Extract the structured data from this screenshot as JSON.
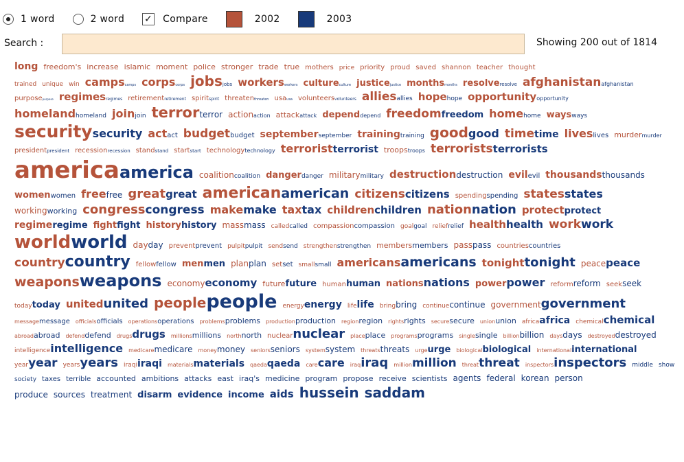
{
  "controls": {
    "radio1_label": "1 word",
    "radio2_label": "2 word",
    "compare_label": "Compare",
    "compare_check": "✓",
    "year1_label": "2002",
    "year2_label": "2003",
    "year1_color": "#b5533a",
    "year2_color": "#183a7a"
  },
  "search": {
    "label": "Search :",
    "value": "",
    "placeholder": ""
  },
  "status": {
    "showing": "Showing 200 out of 1814"
  },
  "cloud": {
    "lines": [
      [
        [
          "long",
          "",
          14,
          0
        ],
        [
          "freedom's",
          "",
          11,
          0
        ],
        [
          "increase",
          "",
          11,
          0
        ],
        [
          "islamic",
          "",
          11,
          0
        ],
        [
          "moment",
          "",
          11,
          0
        ],
        [
          "police",
          "",
          11,
          0
        ],
        [
          "stronger",
          "",
          11,
          0
        ],
        [
          "trade",
          "",
          11,
          0
        ],
        [
          "true",
          "",
          11,
          0
        ],
        [
          "mothers",
          "",
          10,
          0
        ],
        [
          "price",
          "",
          9,
          0
        ],
        [
          "priority",
          "",
          10,
          0
        ],
        [
          "proud",
          "",
          10,
          0
        ],
        [
          "saved",
          "",
          10,
          0
        ],
        [
          "shannon",
          "",
          10,
          0
        ],
        [
          "teacher",
          "",
          10,
          0
        ],
        [
          "thought",
          "",
          10,
          0
        ]
      ],
      [
        [
          "trained",
          "",
          9,
          0
        ],
        [
          "unique",
          "",
          9,
          0
        ],
        [
          "win",
          "",
          9,
          0
        ],
        [
          "camps",
          "camps",
          16,
          5
        ],
        [
          "corps",
          "corps",
          16,
          5
        ],
        [
          "jobs",
          "jobs",
          20,
          7
        ],
        [
          "workers",
          "workers",
          15,
          5
        ],
        [
          "culture",
          "culture",
          13,
          5
        ],
        [
          "justice",
          "justice",
          13,
          5
        ],
        [
          "months",
          "months",
          13,
          5
        ],
        [
          "resolve",
          "resolve",
          13,
          7
        ],
        [
          "afghanistan",
          "afghanistan",
          17,
          8
        ]
      ],
      [
        [
          "purpose",
          "purpose",
          10,
          4
        ],
        [
          "regimes",
          "regimes",
          15,
          6
        ],
        [
          "retirement",
          "retirement",
          10,
          6
        ],
        [
          "spirit",
          "spirit",
          10,
          6
        ],
        [
          "threaten",
          "threaten",
          10,
          5
        ],
        [
          "usa",
          "usa",
          10,
          5
        ],
        [
          "volunteers",
          "volunteers",
          10,
          6
        ],
        [
          "allies",
          "allies",
          17,
          9
        ],
        [
          "hope",
          "hope",
          15,
          9
        ],
        [
          "opportunity",
          "opportunity",
          15,
          8
        ]
      ],
      [
        [
          "homeland",
          "homeland",
          16,
          9
        ],
        [
          "join",
          "join",
          16,
          9
        ],
        [
          "terror",
          "terror",
          21,
          12
        ],
        [
          "action",
          "action",
          12,
          8
        ],
        [
          "attack",
          "attack",
          11,
          8
        ],
        [
          "depend",
          "depend",
          13,
          8
        ],
        [
          "freedom",
          "freedom",
          17,
          13
        ],
        [
          "home",
          "home",
          16,
          9
        ],
        [
          "ways",
          "ways",
          13,
          9
        ]
      ],
      [
        [
          "security",
          "security",
          25,
          16
        ],
        [
          "act",
          "act",
          16,
          10
        ],
        [
          "budget",
          "budget",
          17,
          10
        ],
        [
          "september",
          "september",
          14,
          9
        ],
        [
          "training",
          "training",
          14,
          9
        ],
        [
          "good",
          "good",
          20,
          16
        ],
        [
          "time",
          "time",
          17,
          14
        ],
        [
          "lives",
          "lives",
          16,
          10
        ],
        [
          "murder",
          "murder",
          11,
          8
        ]
      ],
      [
        [
          "president",
          "president",
          10,
          7
        ],
        [
          "recession",
          "recession",
          10,
          7
        ],
        [
          "stand",
          "stand",
          10,
          7
        ],
        [
          "start",
          "start",
          10,
          7
        ],
        [
          "technology",
          "technology",
          10,
          8
        ],
        [
          "terrorist",
          "terrorist",
          16,
          14
        ],
        [
          "troops",
          "troops",
          11,
          8
        ],
        [
          "terrorists",
          "terrorists",
          17,
          15
        ]
      ],
      [
        [
          "america",
          "america",
          34,
          24
        ],
        [
          "coalition",
          "coalition",
          12,
          9
        ],
        [
          "danger",
          "danger",
          13,
          9
        ],
        [
          "military",
          "military",
          12,
          9
        ],
        [
          "destruction",
          "destruction",
          15,
          12
        ],
        [
          "evil",
          "evil",
          14,
          10
        ],
        [
          "thousands",
          "thousands",
          14,
          12
        ]
      ],
      [
        [
          "women",
          "women",
          13,
          10
        ],
        [
          "free",
          "free",
          16,
          12
        ],
        [
          "great",
          "great",
          18,
          15
        ],
        [
          "american",
          "american",
          22,
          19
        ],
        [
          "citizens",
          "citizens",
          17,
          15
        ],
        [
          "spending",
          "spending",
          10,
          10
        ],
        [
          "states",
          "states",
          17,
          16
        ]
      ],
      [
        [
          "working",
          "working",
          12,
          11
        ],
        [
          "congress",
          "congress",
          18,
          17
        ],
        [
          "make",
          "make",
          16,
          16
        ],
        [
          "tax",
          "tax",
          16,
          16
        ],
        [
          "children",
          "children",
          15,
          15
        ],
        [
          "nation",
          "nation",
          18,
          18
        ],
        [
          "protect",
          "protect",
          15,
          13
        ]
      ],
      [
        [
          "regime",
          "regime",
          14,
          13
        ],
        [
          "fight",
          "fight",
          13,
          13
        ],
        [
          "history",
          "history",
          13,
          13
        ],
        [
          "mass",
          "mass",
          12,
          12
        ],
        [
          "called",
          "called",
          9,
          9
        ],
        [
          "compassion",
          "compassion",
          10,
          10
        ],
        [
          "goal",
          "goal",
          9,
          9
        ],
        [
          "relief",
          "relief",
          9,
          9
        ],
        [
          "health",
          "health",
          15,
          15
        ],
        [
          "work",
          "work",
          17,
          17
        ]
      ],
      [
        [
          "world",
          "world",
          26,
          26
        ],
        [
          "day",
          "day",
          12,
          12
        ],
        [
          "prevent",
          "prevent",
          10,
          10
        ],
        [
          "pulpit",
          "pulpit",
          9,
          9
        ],
        [
          "send",
          "send",
          9,
          9
        ],
        [
          "strengthen",
          "strengthen",
          9,
          9
        ],
        [
          "members",
          "members",
          11,
          11
        ],
        [
          "pass",
          "pass",
          12,
          12
        ],
        [
          "countries",
          "countries",
          10,
          10
        ]
      ],
      [
        [
          "country",
          "country",
          17,
          22
        ],
        [
          "fellow",
          "fellow",
          10,
          10
        ],
        [
          "men",
          "men",
          13,
          13
        ],
        [
          "plan",
          "plan",
          12,
          12
        ],
        [
          "set",
          "set",
          10,
          10
        ],
        [
          "small",
          "small",
          9,
          9
        ],
        [
          "americans",
          "americans",
          16,
          19
        ],
        [
          "tonight",
          "tonight",
          15,
          18
        ],
        [
          "peace",
          "peace",
          12,
          15
        ]
      ],
      [
        [
          "weapons",
          "weapons",
          19,
          24
        ],
        [
          "economy",
          "economy",
          12,
          15
        ],
        [
          "future",
          "future",
          11,
          13
        ],
        [
          "human",
          "human",
          10,
          13
        ],
        [
          "nations",
          "nations",
          13,
          16
        ],
        [
          "power",
          "power",
          13,
          16
        ],
        [
          "reform",
          "reform",
          10,
          12
        ],
        [
          "seek",
          "seek",
          10,
          12
        ]
      ],
      [
        [
          "today",
          "today",
          9,
          13
        ],
        [
          "united",
          "united",
          15,
          18
        ],
        [
          "people",
          "people",
          20,
          27
        ],
        [
          "energy",
          "energy",
          9,
          14
        ],
        [
          "life",
          "life",
          9,
          14
        ],
        [
          "bring",
          "bring",
          9,
          12
        ],
        [
          "continue",
          "continue",
          9,
          12
        ],
        [
          "government",
          "government",
          12,
          18
        ]
      ],
      [
        [
          "message",
          "message",
          8,
          10
        ],
        [
          "officials",
          "officials",
          8,
          10
        ],
        [
          "operations",
          "operations",
          8,
          10
        ],
        [
          "problems",
          "problems",
          8,
          11
        ],
        [
          "production",
          "production",
          8,
          11
        ],
        [
          "region",
          "region",
          8,
          11
        ],
        [
          "rights",
          "rights",
          8,
          11
        ],
        [
          "secure",
          "secure",
          8,
          11
        ],
        [
          "union",
          "union",
          8,
          11
        ],
        [
          "africa",
          "africa",
          9,
          14
        ],
        [
          "chemical",
          "chemical",
          9,
          15
        ]
      ],
      [
        [
          "abroad",
          "abroad",
          8,
          11
        ],
        [
          "defend",
          "defend",
          8,
          11
        ],
        [
          "drugs",
          "drugs",
          8,
          15
        ],
        [
          "millions",
          "millions",
          8,
          11
        ],
        [
          "north",
          "north",
          8,
          11
        ],
        [
          "nuclear",
          "nuclear",
          10,
          18
        ],
        [
          "place",
          "place",
          8,
          11
        ],
        [
          "programs",
          "programs",
          8,
          11
        ],
        [
          "single",
          "single",
          8,
          11
        ],
        [
          "billion",
          "billion",
          8,
          12
        ],
        [
          "days",
          "days",
          8,
          12
        ],
        [
          "destroyed",
          "destroyed",
          8,
          12
        ]
      ],
      [
        [
          "intelligence",
          "intelligence",
          9,
          16
        ],
        [
          "medicare",
          "medicare",
          8,
          12
        ],
        [
          "money",
          "money",
          8,
          12
        ],
        [
          "seniors",
          "seniors",
          8,
          12
        ],
        [
          "system",
          "system",
          8,
          12
        ],
        [
          "threats",
          "threats",
          8,
          12
        ],
        [
          "urge",
          "urge",
          8,
          13
        ],
        [
          "biological",
          "biological",
          8,
          13
        ],
        [
          "international",
          "international",
          8,
          13
        ]
      ],
      [
        [
          "year",
          "year",
          9,
          17
        ],
        [
          "years",
          "years",
          9,
          18
        ],
        [
          "iraqi",
          "iraqi",
          9,
          14
        ],
        [
          "materials",
          "materials",
          8,
          14
        ],
        [
          "qaeda",
          "qaeda",
          8,
          14
        ],
        [
          "care",
          "care",
          8,
          16
        ],
        [
          "iraq",
          "iraq",
          8,
          18
        ],
        [
          "million",
          "million",
          8,
          17
        ],
        [
          "threat",
          "threat",
          8,
          17
        ],
        [
          "inspectors",
          "inspectors",
          8,
          18
        ],
        [
          "middle",
          "",
          0,
          9
        ],
        [
          "show",
          "",
          0,
          9
        ]
      ],
      [
        [
          "society",
          "",
          0,
          9
        ],
        [
          "taxes",
          "",
          0,
          10
        ],
        [
          "terrible",
          "",
          0,
          10
        ],
        [
          "accounted",
          "",
          0,
          11
        ],
        [
          "ambitions",
          "",
          0,
          11
        ],
        [
          "attacks",
          "",
          0,
          11
        ],
        [
          "east",
          "",
          0,
          11
        ],
        [
          "iraq's",
          "",
          0,
          11
        ],
        [
          "medicine",
          "",
          0,
          11
        ],
        [
          "program",
          "",
          0,
          11
        ],
        [
          "propose",
          "",
          0,
          11
        ],
        [
          "receive",
          "",
          0,
          11
        ],
        [
          "scientists",
          "",
          0,
          11
        ],
        [
          "agents",
          "",
          0,
          12
        ],
        [
          "federal",
          "",
          0,
          12
        ],
        [
          "korean",
          "",
          0,
          12
        ],
        [
          "person",
          "",
          0,
          12
        ]
      ],
      [
        [
          "produce",
          "",
          0,
          12
        ],
        [
          "sources",
          "",
          0,
          12
        ],
        [
          "treatment",
          "",
          0,
          12
        ],
        [
          "disarm",
          "",
          0,
          13
        ],
        [
          "evidence",
          "",
          0,
          13
        ],
        [
          "income",
          "",
          0,
          13
        ],
        [
          "aids",
          "",
          0,
          15
        ],
        [
          "hussein",
          "",
          0,
          20
        ],
        [
          "saddam",
          "",
          0,
          20
        ]
      ]
    ]
  }
}
